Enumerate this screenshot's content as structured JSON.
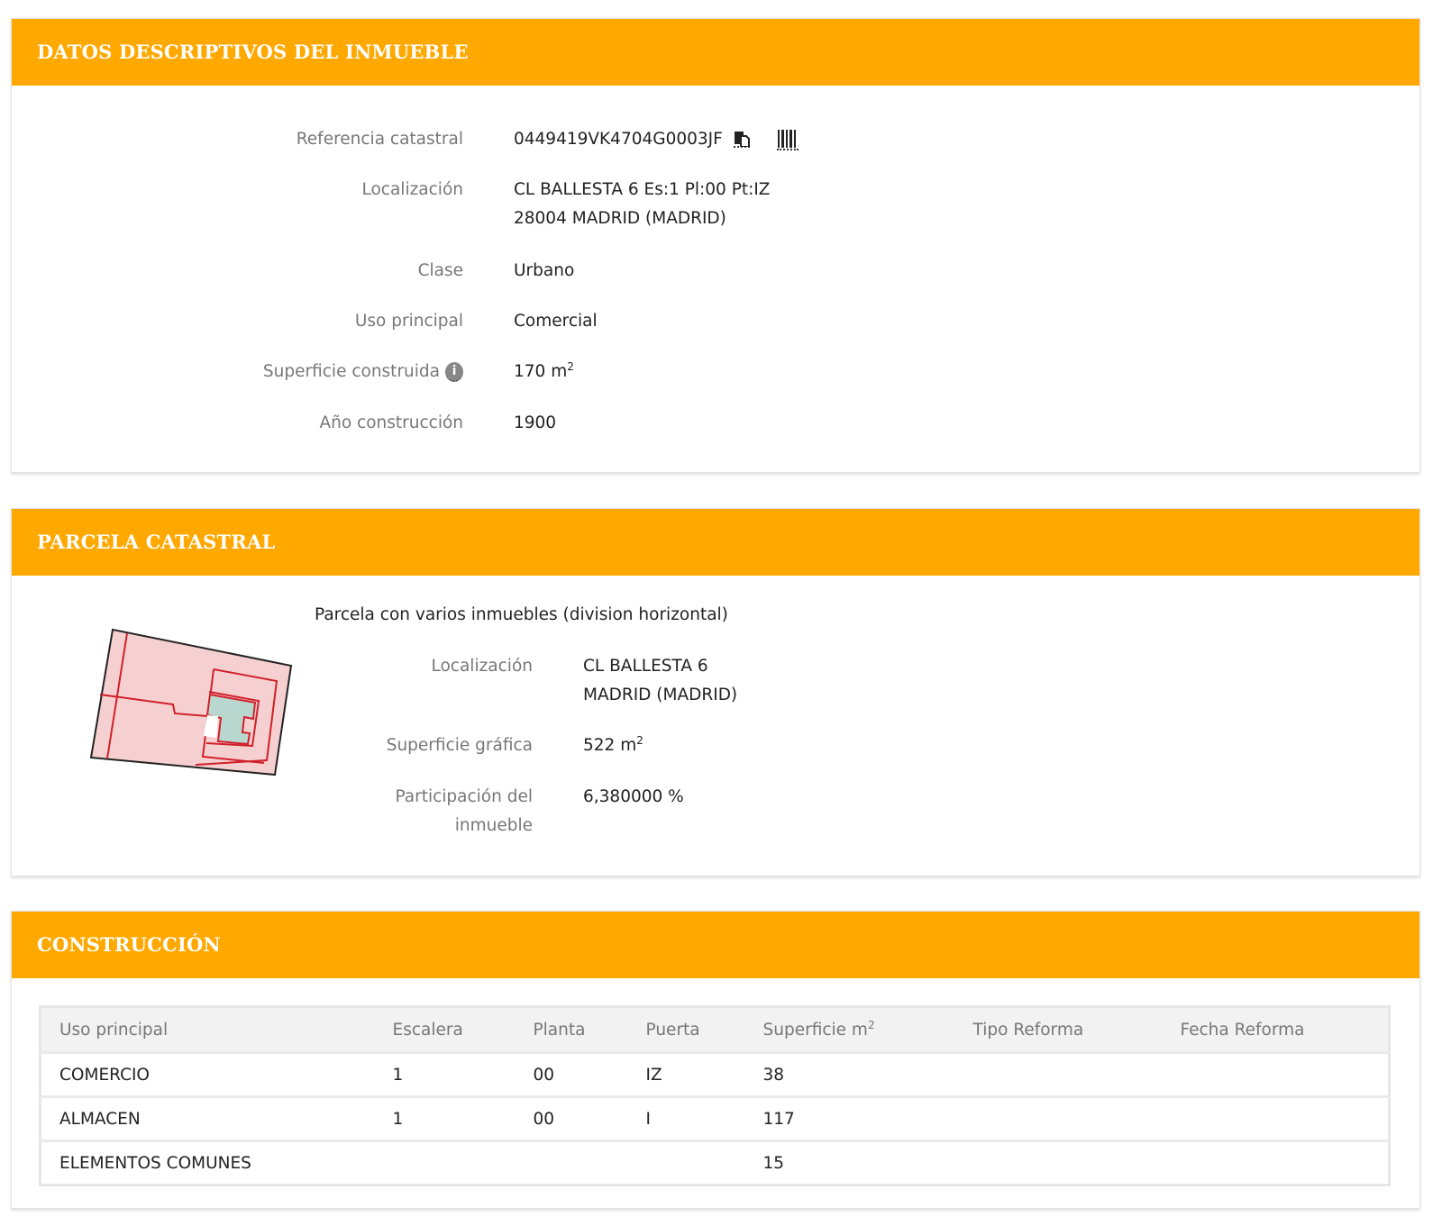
{
  "colors": {
    "accent": "#ffa800"
  },
  "datos": {
    "title": "DATOS DESCRIPTIVOS DEL INMUEBLE",
    "referencia_label": "Referencia catastral",
    "referencia_value": "0449419VK4704G0003JF",
    "copy_icon": "copy-icon",
    "barcode_icon": "barcode-icon",
    "localizacion_label": "Localización",
    "localizacion_line1": "CL BALLESTA 6 Es:1 Pl:00 Pt:IZ",
    "localizacion_line2": "28004 MADRID (MADRID)",
    "clase_label": "Clase",
    "clase_value": "Urbano",
    "uso_label": "Uso principal",
    "uso_value": "Comercial",
    "superficie_label": "Superficie construida",
    "superficie_value": "170 m",
    "superficie_unit_exp": "2",
    "info_icon": "i",
    "anio_label": "Año construcción",
    "anio_value": "1900"
  },
  "parcela": {
    "title": "PARCELA CATASTRAL",
    "description": "Parcela con varios inmuebles (division horizontal)",
    "localizacion_label": "Localización",
    "localizacion_line1": "CL BALLESTA 6",
    "localizacion_line2": "MADRID (MADRID)",
    "superficie_label": "Superficie gráfica",
    "superficie_value": "522 m",
    "superficie_unit_exp": "2",
    "participacion_label_1": "Participación del",
    "participacion_label_2": "inmueble",
    "participacion_value": "6,380000 %"
  },
  "construccion": {
    "title": "CONSTRUCCIÓN",
    "headers": [
      "Uso principal",
      "Escalera",
      "Planta",
      "Puerta",
      "Superficie m",
      "Tipo Reforma",
      "Fecha Reforma"
    ],
    "header_exp": "2",
    "rows": [
      [
        "COMERCIO",
        "1",
        "00",
        "IZ",
        "38",
        "",
        ""
      ],
      [
        "ALMACEN",
        "1",
        "00",
        "I",
        "117",
        "",
        ""
      ],
      [
        "ELEMENTOS COMUNES",
        "",
        "",
        "",
        "15",
        "",
        ""
      ]
    ]
  }
}
